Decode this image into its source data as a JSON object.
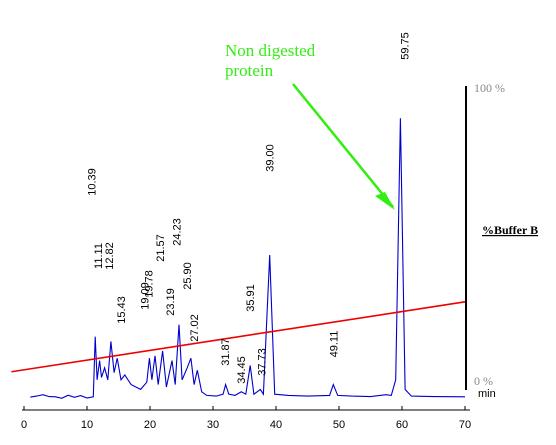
{
  "chart_data": {
    "type": "line",
    "title": "",
    "xlabel": "min",
    "ylabel": "",
    "xlim": [
      0,
      70
    ],
    "x_ticks": [
      0,
      10,
      20,
      30,
      40,
      50,
      60,
      70
    ],
    "grid": false,
    "colors": {
      "trace": "#0000cc",
      "gradient": "#ee0000",
      "annotation": "#33ee11",
      "axis": "#000000"
    },
    "peak_labels": [
      {
        "rt": 10.39,
        "text": "10.39"
      },
      {
        "rt": 11.11,
        "text": "11.11"
      },
      {
        "rt": 12.82,
        "text": "12.82"
      },
      {
        "rt": 15.43,
        "text": "15.43"
      },
      {
        "rt": 19.09,
        "text": "19.09"
      },
      {
        "rt": 19.78,
        "text": "19.78"
      },
      {
        "rt": 21.57,
        "text": "21.57"
      },
      {
        "rt": 23.19,
        "text": "23.19"
      },
      {
        "rt": 24.23,
        "text": "24.23"
      },
      {
        "rt": 25.9,
        "text": "25.90"
      },
      {
        "rt": 27.02,
        "text": "27.02"
      },
      {
        "rt": 31.87,
        "text": "31.87"
      },
      {
        "rt": 34.45,
        "text": "34.45"
      },
      {
        "rt": 35.91,
        "text": "35.91"
      },
      {
        "rt": 37.73,
        "text": "37.73"
      },
      {
        "rt": 39.0,
        "text": "39.00"
      },
      {
        "rt": 49.11,
        "text": "49.11"
      },
      {
        "rt": 59.75,
        "text": "59.75"
      }
    ],
    "trace": {
      "name": "",
      "ylim": [
        0,
        100
      ],
      "points": [
        [
          1,
          0.8
        ],
        [
          2,
          1.2
        ],
        [
          3,
          1.8
        ],
        [
          4,
          1.0
        ],
        [
          5,
          0.9
        ],
        [
          6,
          0.3
        ],
        [
          7,
          1.6
        ],
        [
          8,
          0.7
        ],
        [
          9,
          1.4
        ],
        [
          10,
          0.4
        ],
        [
          11.0,
          0.9
        ],
        [
          11.3,
          26
        ],
        [
          11.6,
          8
        ],
        [
          12.0,
          16
        ],
        [
          12.3,
          9
        ],
        [
          12.8,
          13
        ],
        [
          13.3,
          8
        ],
        [
          13.8,
          24
        ],
        [
          14.3,
          11
        ],
        [
          14.8,
          17
        ],
        [
          15.4,
          8
        ],
        [
          16.0,
          10
        ],
        [
          17.0,
          6
        ],
        [
          18.5,
          4
        ],
        [
          19.5,
          7
        ],
        [
          19.9,
          17
        ],
        [
          20.3,
          8
        ],
        [
          20.8,
          18
        ],
        [
          21.3,
          6
        ],
        [
          22.0,
          20
        ],
        [
          22.6,
          5
        ],
        [
          23.5,
          16
        ],
        [
          24.0,
          6
        ],
        [
          24.6,
          31
        ],
        [
          25.1,
          8
        ],
        [
          25.9,
          13
        ],
        [
          26.5,
          17
        ],
        [
          27.0,
          6
        ],
        [
          27.5,
          12
        ],
        [
          28.2,
          3
        ],
        [
          29.0,
          1.5
        ],
        [
          30.5,
          1.2
        ],
        [
          31.6,
          2
        ],
        [
          32.0,
          6
        ],
        [
          32.5,
          2
        ],
        [
          33.5,
          1.5
        ],
        [
          34.5,
          3
        ],
        [
          35.2,
          2
        ],
        [
          35.9,
          14
        ],
        [
          36.5,
          2
        ],
        [
          37.5,
          4
        ],
        [
          38.0,
          2
        ],
        [
          39.0,
          60
        ],
        [
          39.8,
          2
        ],
        [
          42,
          1.5
        ],
        [
          45,
          1.2
        ],
        [
          48.5,
          1.5
        ],
        [
          49.1,
          6
        ],
        [
          49.8,
          1.5
        ],
        [
          52,
          1.2
        ],
        [
          55,
          1.0
        ],
        [
          57.5,
          1.8
        ],
        [
          58.3,
          1.5
        ],
        [
          59.0,
          8
        ],
        [
          59.75,
          117
        ],
        [
          60.5,
          4
        ],
        [
          61.5,
          1.2
        ],
        [
          65,
          1.0
        ],
        [
          70,
          0.9
        ]
      ]
    },
    "buffer_b": {
      "label": "%Buffer B",
      "axis_labels": [
        "100 %",
        "0 %"
      ],
      "ylim": [
        0,
        100
      ],
      "line": [
        [
          -2,
          6
        ],
        [
          70,
          29
        ]
      ]
    },
    "annotations": [
      {
        "lines": [
          "Non digested",
          "protein"
        ],
        "arrow_to_rt": 59.0
      }
    ]
  }
}
